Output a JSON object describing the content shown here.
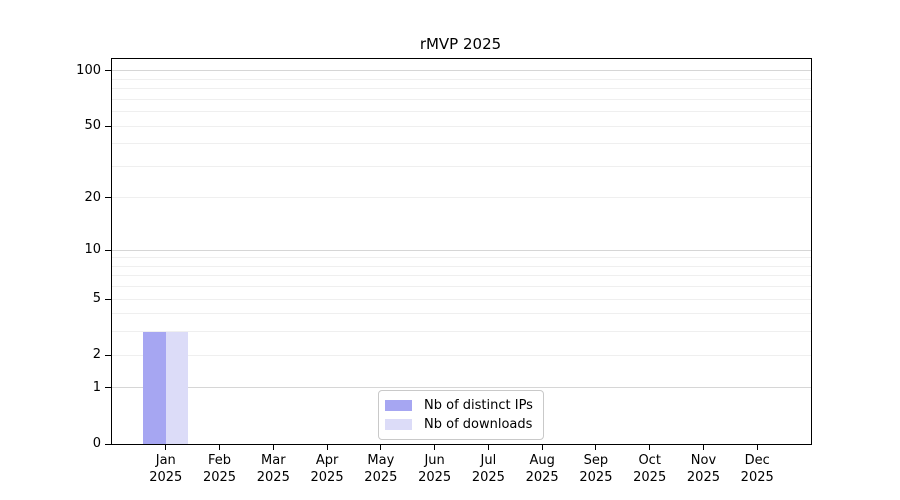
{
  "chart_data": {
    "type": "bar",
    "title": "rMVP 2025",
    "categories": [
      {
        "month": "Jan",
        "year": "2025"
      },
      {
        "month": "Feb",
        "year": "2025"
      },
      {
        "month": "Mar",
        "year": "2025"
      },
      {
        "month": "Apr",
        "year": "2025"
      },
      {
        "month": "May",
        "year": "2025"
      },
      {
        "month": "Jun",
        "year": "2025"
      },
      {
        "month": "Jul",
        "year": "2025"
      },
      {
        "month": "Aug",
        "year": "2025"
      },
      {
        "month": "Sep",
        "year": "2025"
      },
      {
        "month": "Oct",
        "year": "2025"
      },
      {
        "month": "Nov",
        "year": "2025"
      },
      {
        "month": "Dec",
        "year": "2025"
      }
    ],
    "series": [
      {
        "name": "Nb of distinct IPs",
        "color": "#a6a6f2",
        "values": [
          3,
          0,
          0,
          0,
          0,
          0,
          0,
          0,
          0,
          0,
          0,
          0
        ]
      },
      {
        "name": "Nb of downloads",
        "color": "#dcdcf8",
        "values": [
          3,
          0,
          0,
          0,
          0,
          0,
          0,
          0,
          0,
          0,
          0,
          0
        ]
      }
    ],
    "yscale": "log1p",
    "ylim": [
      0,
      116
    ],
    "xlabel": "",
    "ylabel": "",
    "yticks": [
      {
        "value": 0,
        "label": "0"
      },
      {
        "value": 1,
        "label": "1"
      },
      {
        "value": 2,
        "label": "2"
      },
      {
        "value": 5,
        "label": "5"
      },
      {
        "value": 10,
        "label": "10"
      },
      {
        "value": 20,
        "label": "20"
      },
      {
        "value": 50,
        "label": "50"
      },
      {
        "value": 100,
        "label": "100"
      }
    ],
    "grid": true,
    "grid_major_values": [
      1,
      10,
      100
    ],
    "grid_minor_values": [
      2,
      3,
      4,
      5,
      6,
      7,
      8,
      9,
      20,
      30,
      40,
      50,
      60,
      70,
      80,
      90
    ],
    "legend_position": "lower center"
  },
  "colors": {
    "background": "#ffffff",
    "spine": "#000000",
    "grid_major": "#d6d6d6",
    "grid_minor": "#efefef",
    "legend_border": "#c9c9c9",
    "bar_distinct_ips": "#a6a6f2",
    "bar_downloads": "#dcdcf8"
  }
}
